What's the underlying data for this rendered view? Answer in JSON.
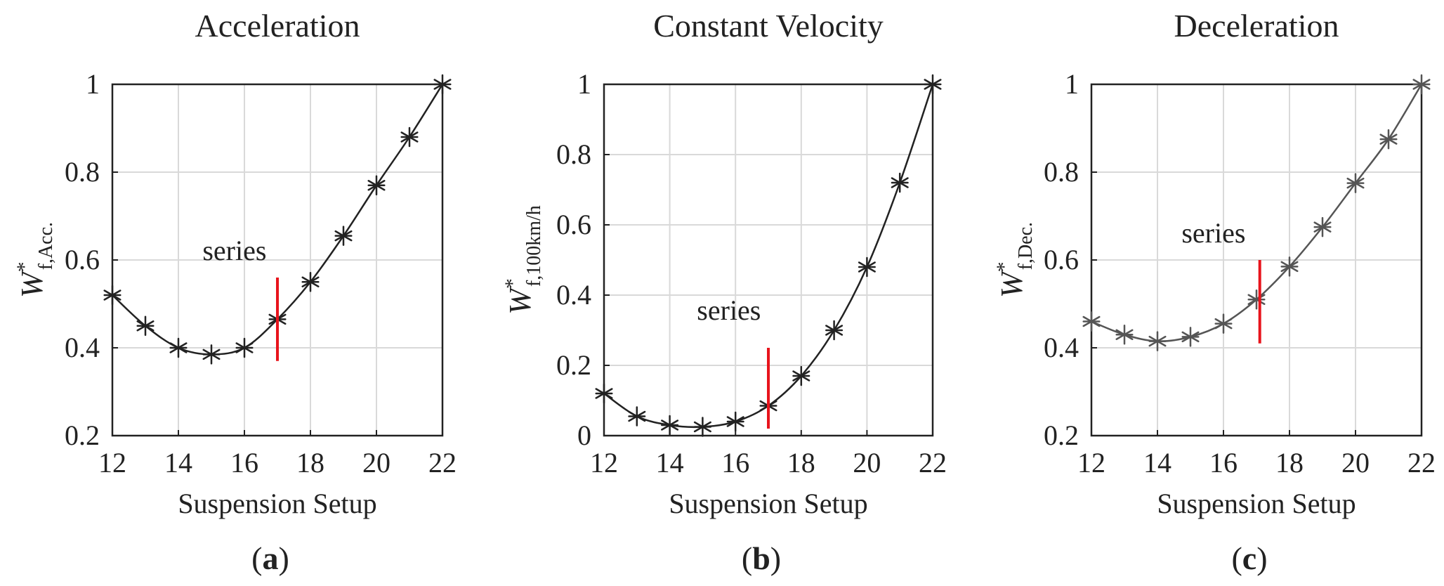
{
  "chart_data": [
    {
      "type": "line",
      "panel_label": "a",
      "title": "Acceleration",
      "xlabel": "Suspension Setup",
      "ylabel_main": "W",
      "ylabel_sup": "*",
      "ylabel_sub": "f,Acc.",
      "xlim": [
        12,
        22
      ],
      "ylim": [
        0.2,
        1
      ],
      "xticks": [
        12,
        14,
        16,
        18,
        20,
        22
      ],
      "xtick_labels": [
        "12",
        "14",
        "16",
        "18",
        "20",
        "22"
      ],
      "yticks": [
        0.2,
        0.4,
        0.6,
        0.8,
        1
      ],
      "ytick_labels": [
        "0.2",
        "0.4",
        "0.6",
        "0.8",
        "1"
      ],
      "grid": true,
      "series": [
        {
          "name": "W*f,Acc.",
          "marker": "asterisk",
          "color": "#222222",
          "x": [
            12,
            13,
            14,
            15,
            16,
            17,
            18,
            19,
            20,
            21,
            22
          ],
          "y": [
            0.52,
            0.45,
            0.4,
            0.385,
            0.4,
            0.465,
            0.55,
            0.655,
            0.77,
            0.88,
            1.0
          ]
        }
      ],
      "annotation": {
        "text": "series",
        "x": 17,
        "y_from": 0.37,
        "y_to": 0.56,
        "text_x": 15.7,
        "text_y": 0.6,
        "color": "#e8141c"
      }
    },
    {
      "type": "line",
      "panel_label": "b",
      "title": "Constant Velocity",
      "xlabel": "Suspension Setup",
      "ylabel_main": "W",
      "ylabel_sup": "*",
      "ylabel_sub": "f,100km/h",
      "xlim": [
        12,
        22
      ],
      "ylim": [
        0,
        1
      ],
      "xticks": [
        12,
        14,
        16,
        18,
        20,
        22
      ],
      "xtick_labels": [
        "12",
        "14",
        "16",
        "18",
        "20",
        "22"
      ],
      "yticks": [
        0,
        0.2,
        0.4,
        0.6,
        0.8,
        1
      ],
      "ytick_labels": [
        "0",
        "0.2",
        "0.4",
        "0.6",
        "0.8",
        "1"
      ],
      "grid": true,
      "series": [
        {
          "name": "W*f,100km/h",
          "marker": "asterisk",
          "color": "#222222",
          "x": [
            12,
            13,
            14,
            15,
            16,
            17,
            18,
            19,
            20,
            21,
            22
          ],
          "y": [
            0.12,
            0.055,
            0.03,
            0.025,
            0.04,
            0.085,
            0.17,
            0.3,
            0.48,
            0.72,
            1.0
          ]
        }
      ],
      "annotation": {
        "text": "series",
        "x": 17,
        "y_from": 0.02,
        "y_to": 0.25,
        "text_x": 15.8,
        "text_y": 0.33,
        "color": "#e8141c"
      }
    },
    {
      "type": "line",
      "panel_label": "c",
      "title": "Deceleration",
      "xlabel": "Suspension Setup",
      "ylabel_main": "W",
      "ylabel_sup": "*",
      "ylabel_sub": "f,Dec.",
      "xlim": [
        12,
        22
      ],
      "ylim": [
        0.2,
        1
      ],
      "xticks": [
        12,
        14,
        16,
        18,
        20,
        22
      ],
      "xtick_labels": [
        "12",
        "14",
        "16",
        "18",
        "20",
        "22"
      ],
      "yticks": [
        0.2,
        0.4,
        0.6,
        0.8,
        1
      ],
      "ytick_labels": [
        "0.2",
        "0.4",
        "0.6",
        "0.8",
        "1"
      ],
      "grid": true,
      "series": [
        {
          "name": "W*f,Dec.",
          "marker": "asterisk",
          "color": "#555555",
          "x": [
            12,
            13,
            14,
            15,
            16,
            17,
            18,
            19,
            20,
            21,
            22
          ],
          "y": [
            0.46,
            0.43,
            0.415,
            0.425,
            0.455,
            0.51,
            0.585,
            0.675,
            0.775,
            0.875,
            1.0
          ]
        }
      ],
      "annotation": {
        "text": "series",
        "x": 17.1,
        "y_from": 0.41,
        "y_to": 0.6,
        "text_x": 15.7,
        "text_y": 0.64,
        "color": "#e8141c"
      }
    }
  ]
}
